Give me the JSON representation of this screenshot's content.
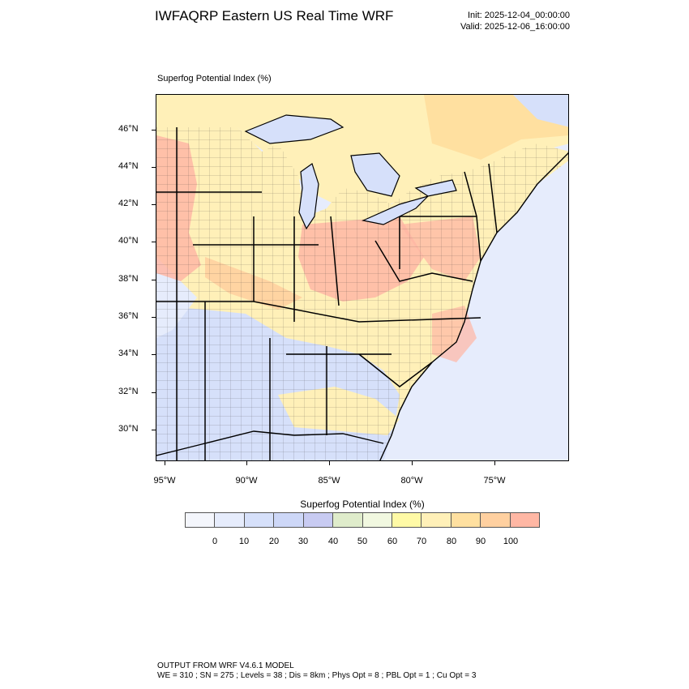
{
  "title": "IWFAQRP Eastern US Real Time WRF",
  "init": "Init: 2025-12-04_00:00:00",
  "valid": "Valid: 2025-12-06_16:00:00",
  "field_label": "Superfog Potential Index   (%)",
  "colorbar": {
    "title": "Superfog Potential Index  (%)",
    "labels": [
      "0",
      "10",
      "20",
      "30",
      "40",
      "50",
      "60",
      "70",
      "80",
      "90",
      "100"
    ],
    "colors": [
      "#f4f6fc",
      "#e6ecfc",
      "#d6e0fa",
      "#cdd7f7",
      "#c8cbf2",
      "#dfeccb",
      "#f1f8e0",
      "#fffaa6",
      "#fff0b8",
      "#ffe0a0",
      "#ffd0a0",
      "#ffb7a4"
    ]
  },
  "map": {
    "lat_labels": [
      "46°N",
      "44°N",
      "42°N",
      "40°N",
      "38°N",
      "36°N",
      "34°N",
      "32°N",
      "30°N"
    ],
    "lon_labels": [
      "95°W",
      "90°W",
      "85°W",
      "80°W",
      "75°W"
    ],
    "colors": {
      "ocean": "#e6ecfc",
      "land_low": "#d6e0fa",
      "land_mid": "#fff0b8",
      "land_high": "#ffb7a4",
      "lake": "#d6e0fa"
    }
  },
  "footer": {
    "line1": "OUTPUT FROM WRF V4.6.1 MODEL",
    "line2": "WE = 310 ; SN = 275 ; Levels = 38 ; Dis = 8km ; Phys Opt = 8 ; PBL Opt = 1 ; Cu Opt = 3"
  }
}
